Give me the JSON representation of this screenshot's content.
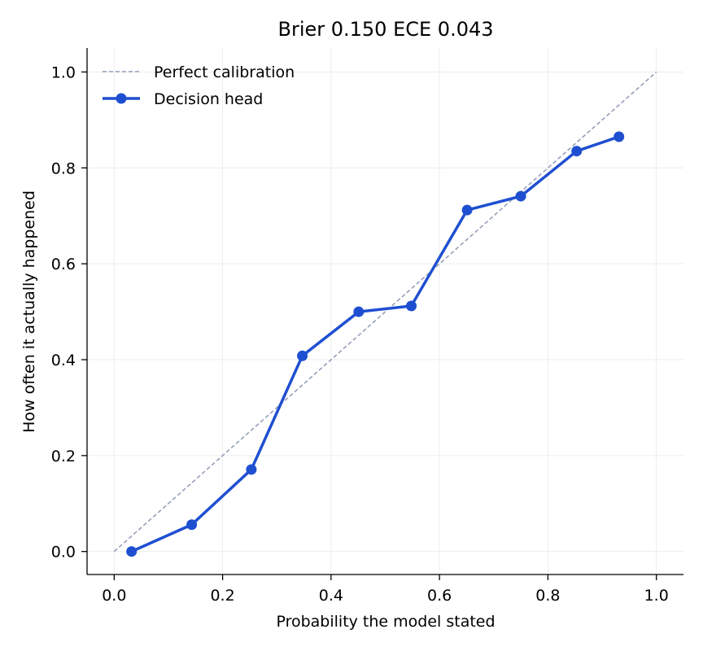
{
  "chart_data": {
    "type": "line",
    "title": "Brier 0.150   ECE 0.043",
    "xlabel": "Probability the model stated",
    "ylabel": "How often it actually happened",
    "xlim": [
      -0.05,
      1.05
    ],
    "ylim": [
      -0.048,
      1.05
    ],
    "x_ticks": [
      "0.0",
      "0.2",
      "0.4",
      "0.6",
      "0.8",
      "1.0"
    ],
    "y_ticks": [
      "0.0",
      "0.2",
      "0.4",
      "0.6",
      "0.8",
      "1.0"
    ],
    "grid": true,
    "legend_position": "top-left",
    "series": [
      {
        "name": "Perfect calibration",
        "style": "dashed",
        "color": "#94a0b8",
        "x": [
          0.0,
          1.0
        ],
        "y": [
          0.0,
          1.0
        ]
      },
      {
        "name": "Decision head",
        "style": "solid-markers",
        "color": "#1f4fd1",
        "x": [
          0.032,
          0.143,
          0.253,
          0.347,
          0.451,
          0.548,
          0.651,
          0.75,
          0.853,
          0.931
        ],
        "y": [
          0.0,
          0.056,
          0.171,
          0.408,
          0.5,
          0.512,
          0.712,
          0.741,
          0.835,
          0.865
        ]
      }
    ]
  }
}
